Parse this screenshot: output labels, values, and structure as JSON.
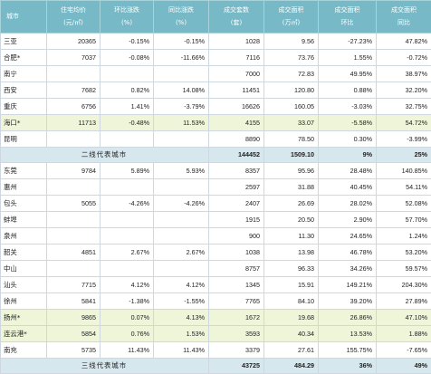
{
  "headers": {
    "city": "城市",
    "price": [
      "住宅均价",
      "(元/㎡)"
    ],
    "mom_price": [
      "环比涨跌",
      "(%)"
    ],
    "yoy_price": [
      "同比涨跌",
      "(%)"
    ],
    "units": [
      "成交套数",
      "(套)"
    ],
    "area": [
      "成交面积",
      "(万㎡)"
    ],
    "area_mom": [
      "成交面积",
      "环比"
    ],
    "area_yoy": [
      "成交面积",
      "同比"
    ]
  },
  "group2": {
    "rows": [
      {
        "city": "三亚",
        "price": "20365",
        "mom": "-0.15%",
        "yoy": "-0.15%",
        "units": "1028",
        "area": "9.56",
        "amom": "-27.23%",
        "ayoy": "47.82%",
        "hl": false
      },
      {
        "city": "合肥*",
        "price": "7037",
        "mom": "-0.08%",
        "yoy": "-11.66%",
        "units": "7116",
        "area": "73.76",
        "amom": "1.55%",
        "ayoy": "-0.72%",
        "hl": false
      },
      {
        "city": "南宁",
        "price": "",
        "mom": "",
        "yoy": "",
        "units": "7000",
        "area": "72.83",
        "amom": "49.95%",
        "ayoy": "38.97%",
        "hl": false
      },
      {
        "city": "西安",
        "price": "7682",
        "mom": "0.82%",
        "yoy": "14.08%",
        "units": "11451",
        "area": "120.80",
        "amom": "0.88%",
        "ayoy": "32.20%",
        "hl": false
      },
      {
        "city": "重庆",
        "price": "6756",
        "mom": "1.41%",
        "yoy": "-3.79%",
        "units": "16626",
        "area": "160.05",
        "amom": "-3.03%",
        "ayoy": "32.75%",
        "hl": false
      },
      {
        "city": "海口*",
        "price": "11713",
        "mom": "-0.48%",
        "yoy": "11.53%",
        "units": "4155",
        "area": "33.07",
        "amom": "-5.58%",
        "ayoy": "54.72%",
        "hl": true
      },
      {
        "city": "昆明",
        "price": "",
        "mom": "",
        "yoy": "",
        "units": "8890",
        "area": "78.50",
        "amom": "0.30%",
        "ayoy": "-3.99%",
        "hl": false
      }
    ],
    "summary": {
      "label": "二线代表城市",
      "units": "144452",
      "area": "1509.10",
      "amom": "9%",
      "ayoy": "25%"
    }
  },
  "group3": {
    "rows": [
      {
        "city": "东莞",
        "price": "9784",
        "mom": "5.89%",
        "yoy": "5.93%",
        "units": "8357",
        "area": "95.96",
        "amom": "28.48%",
        "ayoy": "140.85%",
        "hl": false
      },
      {
        "city": "惠州",
        "price": "",
        "mom": "",
        "yoy": "",
        "units": "2597",
        "area": "31.88",
        "amom": "40.45%",
        "ayoy": "54.11%",
        "hl": false
      },
      {
        "city": "包头",
        "price": "5055",
        "mom": "-4.26%",
        "yoy": "-4.26%",
        "units": "2407",
        "area": "26.69",
        "amom": "28.02%",
        "ayoy": "52.08%",
        "hl": false
      },
      {
        "city": "蚌埠",
        "price": "",
        "mom": "",
        "yoy": "",
        "units": "1915",
        "area": "20.50",
        "amom": "2.90%",
        "ayoy": "57.70%",
        "hl": false
      },
      {
        "city": "泉州",
        "price": "",
        "mom": "",
        "yoy": "",
        "units": "900",
        "area": "11.30",
        "amom": "24.65%",
        "ayoy": "1.24%",
        "hl": false
      },
      {
        "city": "韶关",
        "price": "4851",
        "mom": "2.67%",
        "yoy": "2.67%",
        "units": "1038",
        "area": "13.98",
        "amom": "46.78%",
        "ayoy": "53.20%",
        "hl": false
      },
      {
        "city": "中山",
        "price": "",
        "mom": "",
        "yoy": "",
        "units": "8757",
        "area": "96.33",
        "amom": "34.26%",
        "ayoy": "59.57%",
        "hl": false
      },
      {
        "city": "汕头",
        "price": "7715",
        "mom": "4.12%",
        "yoy": "4.12%",
        "units": "1345",
        "area": "15.91",
        "amom": "149.21%",
        "ayoy": "204.30%",
        "hl": false
      },
      {
        "city": "徐州",
        "price": "5841",
        "mom": "-1.38%",
        "yoy": "-1.55%",
        "units": "7765",
        "area": "84.10",
        "amom": "39.20%",
        "ayoy": "27.89%",
        "hl": false
      },
      {
        "city": "扬州*",
        "price": "9865",
        "mom": "0.07%",
        "yoy": "4.13%",
        "units": "1672",
        "area": "19.68",
        "amom": "26.86%",
        "ayoy": "47.10%",
        "hl": true
      },
      {
        "city": "连云港*",
        "price": "5854",
        "mom": "0.76%",
        "yoy": "1.53%",
        "units": "3593",
        "area": "40.34",
        "amom": "13.53%",
        "ayoy": "1.88%",
        "hl": true
      },
      {
        "city": "南充",
        "price": "5735",
        "mom": "11.43%",
        "yoy": "11.43%",
        "units": "3379",
        "area": "27.61",
        "amom": "155.75%",
        "ayoy": "-7.65%",
        "hl": false
      }
    ],
    "summary": {
      "label": "三线代表城市",
      "units": "43725",
      "area": "484.29",
      "amom": "36%",
      "ayoy": "49%"
    }
  }
}
